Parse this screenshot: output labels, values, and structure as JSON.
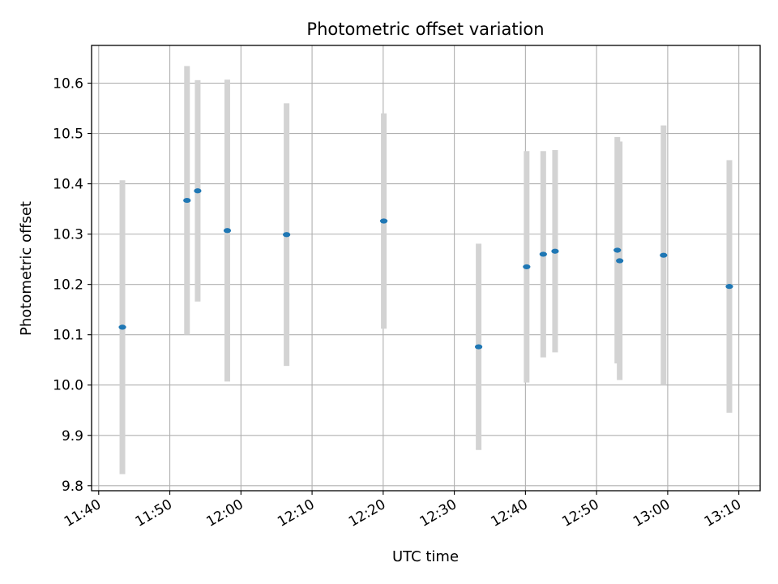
{
  "chart_data": {
    "type": "scatter",
    "title": "Photometric offset variation",
    "xlabel": "UTC time",
    "ylabel": "Photometric offset",
    "grid": true,
    "x_unit": "time (HH:MM UTC)",
    "xlim": [
      "11:39",
      "13:13"
    ],
    "ylim": [
      9.79,
      10.675
    ],
    "x_ticks": [
      "11:40",
      "11:50",
      "12:00",
      "12:10",
      "12:20",
      "12:30",
      "12:40",
      "12:50",
      "13:00",
      "13:10"
    ],
    "y_ticks": [
      "9.8",
      "9.9",
      "10.0",
      "10.1",
      "10.2",
      "10.3",
      "10.4",
      "10.5",
      "10.6"
    ],
    "series": [
      {
        "marker_color": "#1f77b4",
        "errorbar_color": "#d3d3d3",
        "points": [
          {
            "x": "11:43:20",
            "y": 10.115,
            "err": 0.292
          },
          {
            "x": "11:52:25",
            "y": 10.367,
            "err": 0.267
          },
          {
            "x": "11:53:55",
            "y": 10.386,
            "err": 0.22
          },
          {
            "x": "11:58:05",
            "y": 10.307,
            "err": 0.3
          },
          {
            "x": "12:06:25",
            "y": 10.299,
            "err": 0.261
          },
          {
            "x": "12:20:05",
            "y": 10.326,
            "err": 0.214
          },
          {
            "x": "12:33:25",
            "y": 10.076,
            "err": 0.205
          },
          {
            "x": "12:40:10",
            "y": 10.235,
            "err": 0.23
          },
          {
            "x": "12:42:30",
            "y": 10.26,
            "err": 0.205
          },
          {
            "x": "12:44:10",
            "y": 10.266,
            "err": 0.201
          },
          {
            "x": "12:52:55",
            "y": 10.268,
            "err": 0.225
          },
          {
            "x": "12:53:15",
            "y": 10.247,
            "err": 0.237
          },
          {
            "x": "12:59:25",
            "y": 10.258,
            "err": 0.258
          },
          {
            "x": "13:08:40",
            "y": 10.196,
            "err": 0.251
          }
        ]
      }
    ]
  }
}
